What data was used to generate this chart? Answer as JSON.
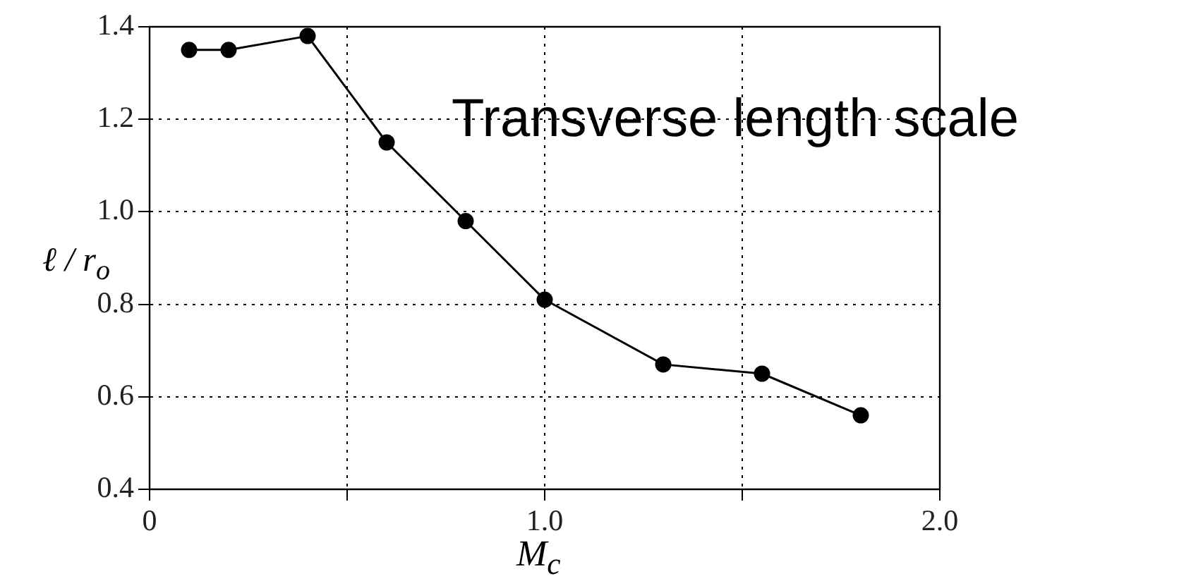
{
  "chart_data": {
    "type": "line",
    "xlabel": "M$_{c}$",
    "ylabel": "ℓ / r$_{o}$",
    "annotations": [
      "Transverse length scale"
    ],
    "x": [
      0.1,
      0.2,
      0.4,
      0.6,
      0.8,
      1.0,
      1.3,
      1.55,
      1.8
    ],
    "series": [
      {
        "color": "#000000",
        "values": [
          1.35,
          1.35,
          1.38,
          1.15,
          0.98,
          0.81,
          0.67,
          0.65,
          0.56
        ]
      }
    ],
    "xlim": [
      0,
      2
    ],
    "xticks": [
      0,
      {
        "value": 0.5,
        "label": null
      },
      {
        "value": 1,
        "label": "1.0"
      },
      {
        "value": 1.5,
        "label": null
      },
      {
        "value": 2,
        "label": "2.0"
      }
    ],
    "ylim": [
      0.4,
      1.4
    ],
    "yticks": [
      0.4,
      0.6,
      0.8,
      {
        "value": 1,
        "label": "1.0"
      },
      1.2,
      1.4
    ],
    "grid": true,
    "legend": false,
    "marker": "circle",
    "line_style": "solid"
  }
}
